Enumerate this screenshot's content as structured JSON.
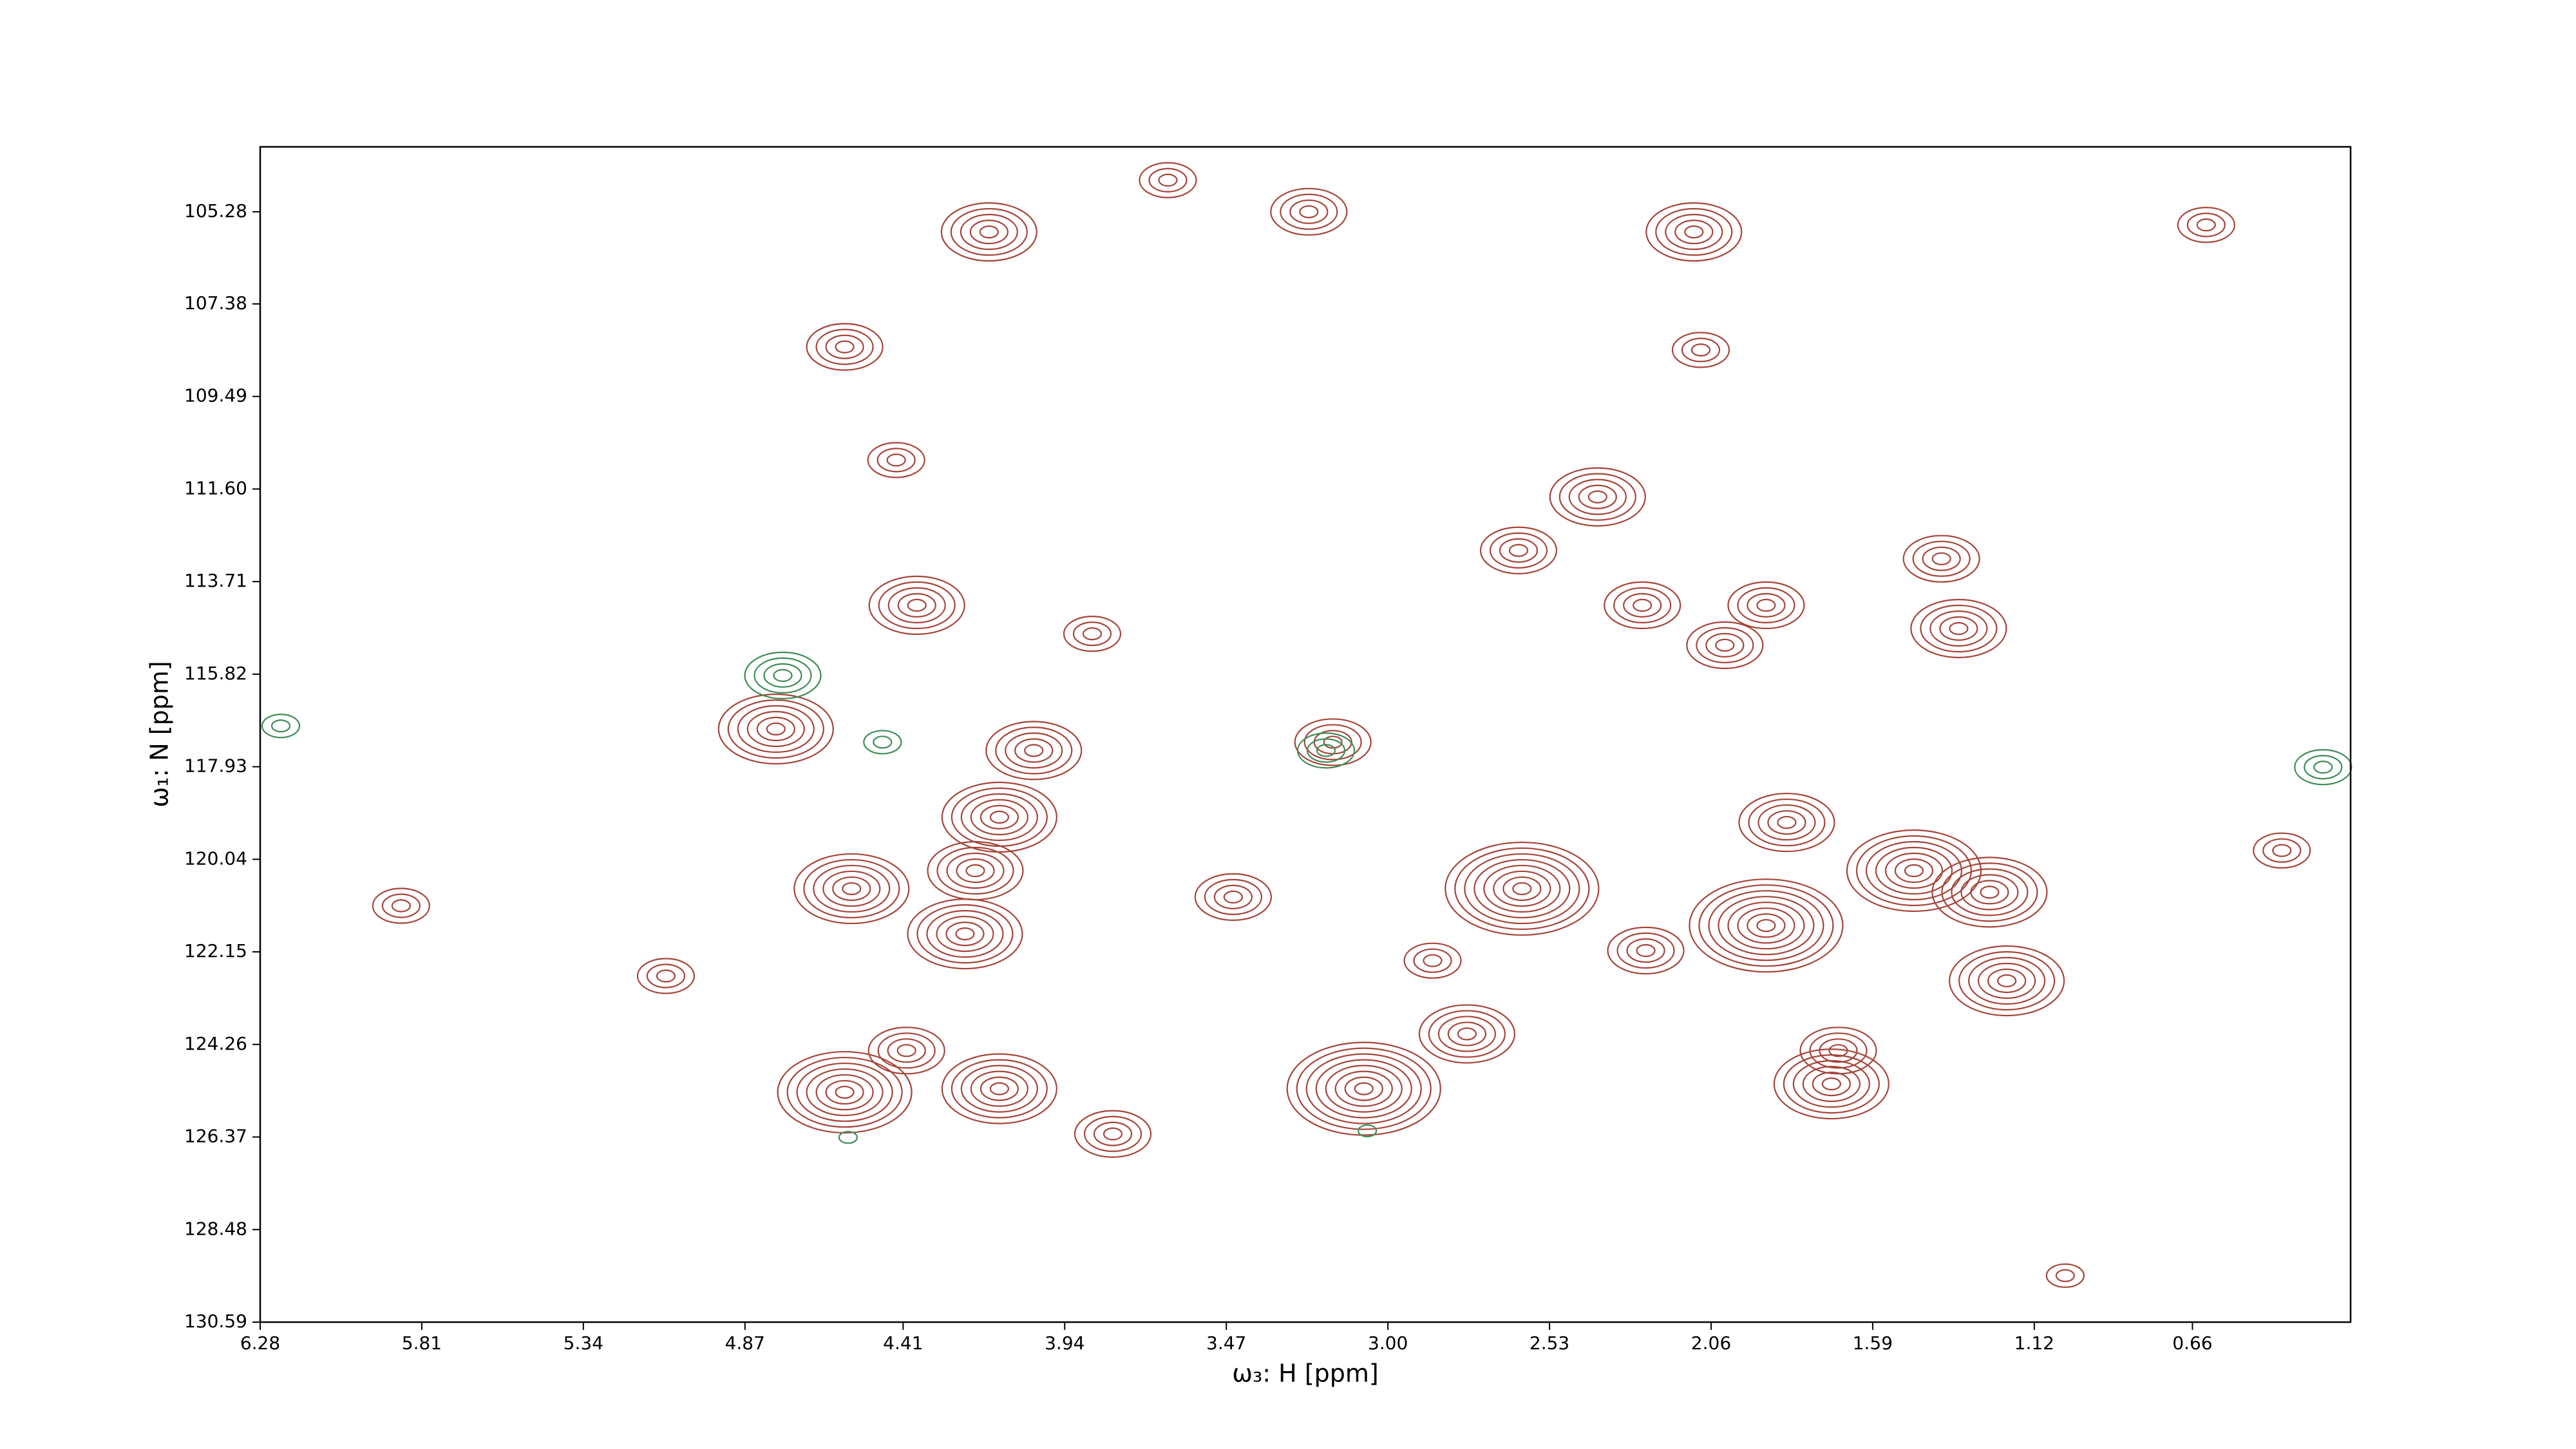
{
  "chart_data": {
    "type": "contour",
    "xlabel": "ω₃: H [ppm]",
    "ylabel": "ω₁: N [ppm]",
    "xlim": [
      6.28,
      0.2
    ],
    "ylim": [
      130.59,
      103.8
    ],
    "xticks": [
      6.28,
      5.81,
      5.34,
      4.87,
      4.41,
      3.94,
      3.47,
      {
        "value": 3.0,
        "label": "3.00"
      },
      2.53,
      2.06,
      1.59,
      1.12,
      0.66
    ],
    "yticks": [
      105.28,
      107.38,
      109.49,
      {
        "value": 111.6,
        "label": "111.60"
      },
      113.71,
      115.82,
      117.93,
      120.04,
      122.15,
      124.26,
      126.37,
      128.48,
      130.59
    ],
    "color": "#a5453a",
    "negative_color": "#3e8c56",
    "peaks": [
      {
        "x": 4.16,
        "y": 105.74,
        "levels": 5
      },
      {
        "x": 3.23,
        "y": 105.28,
        "levels": 4
      },
      {
        "x": 2.11,
        "y": 105.74,
        "levels": 5
      },
      {
        "x": 4.58,
        "y": 108.36,
        "levels": 4
      },
      {
        "x": 4.43,
        "y": 110.94,
        "levels": 3
      },
      {
        "x": 2.39,
        "y": 111.78,
        "levels": 5
      },
      {
        "x": 2.62,
        "y": 113.0,
        "levels": 4
      },
      {
        "x": 4.37,
        "y": 114.25,
        "levels": 5
      },
      {
        "x": 2.26,
        "y": 114.25,
        "levels": 4
      },
      {
        "x": 1.9,
        "y": 114.25,
        "levels": 4
      },
      {
        "x": 1.39,
        "y": 113.19,
        "levels": 4
      },
      {
        "x": 1.34,
        "y": 114.78,
        "levels": 5
      },
      {
        "x": 2.02,
        "y": 115.16,
        "levels": 4
      },
      {
        "x": 4.78,
        "y": 117.07,
        "levels": 6
      },
      {
        "x": 3.16,
        "y": 117.37,
        "levels": 4
      },
      {
        "x": 4.03,
        "y": 117.56,
        "levels": 5
      },
      {
        "x": 4.13,
        "y": 119.08,
        "levels": 6
      },
      {
        "x": 4.56,
        "y": 120.71,
        "levels": 6
      },
      {
        "x": 4.2,
        "y": 120.3,
        "levels": 5
      },
      {
        "x": 4.23,
        "y": 121.74,
        "levels": 6
      },
      {
        "x": 2.61,
        "y": 120.71,
        "levels": 8
      },
      {
        "x": 1.9,
        "y": 121.55,
        "levels": 8
      },
      {
        "x": 1.47,
        "y": 120.3,
        "levels": 7
      },
      {
        "x": 1.25,
        "y": 120.79,
        "levels": 6
      },
      {
        "x": 1.2,
        "y": 122.81,
        "levels": 6
      },
      {
        "x": 1.84,
        "y": 119.2,
        "levels": 5
      },
      {
        "x": 2.25,
        "y": 122.12,
        "levels": 4
      },
      {
        "x": 2.77,
        "y": 124.02,
        "levels": 5
      },
      {
        "x": 4.58,
        "y": 125.35,
        "levels": 7
      },
      {
        "x": 4.13,
        "y": 125.27,
        "levels": 6
      },
      {
        "x": 3.07,
        "y": 125.27,
        "levels": 8
      },
      {
        "x": 1.71,
        "y": 125.16,
        "levels": 6
      },
      {
        "x": 1.69,
        "y": 124.4,
        "levels": 4
      },
      {
        "x": 4.4,
        "y": 124.4,
        "levels": 4
      },
      {
        "x": 3.8,
        "y": 126.3,
        "levels": 4
      },
      {
        "x": 3.45,
        "y": 120.9,
        "levels": 4
      },
      {
        "x": 2.87,
        "y": 122.35,
        "levels": 3
      },
      {
        "x": 5.1,
        "y": 122.7,
        "levels": 3
      },
      {
        "x": 5.87,
        "y": 121.1,
        "levels": 3
      },
      {
        "x": 0.4,
        "y": 119.84,
        "levels": 3
      },
      {
        "x": 0.62,
        "y": 105.58,
        "levels": 3
      },
      {
        "x": 3.64,
        "y": 104.56,
        "levels": 3
      },
      {
        "x": 2.09,
        "y": 108.43,
        "levels": 3
      },
      {
        "x": 3.86,
        "y": 114.9,
        "levels": 3
      },
      {
        "x": 1.03,
        "y": 129.53,
        "levels": 2
      }
    ],
    "negative_peaks": [
      {
        "x": 4.76,
        "y": 115.85,
        "levels": 4
      },
      {
        "x": 3.18,
        "y": 117.56,
        "levels": 3
      },
      {
        "x": 4.47,
        "y": 117.37,
        "levels": 2
      },
      {
        "x": 6.22,
        "y": 117.0,
        "levels": 2
      },
      {
        "x": 0.28,
        "y": 117.94,
        "levels": 3
      },
      {
        "x": 4.57,
        "y": 126.38,
        "levels": 1
      },
      {
        "x": 3.06,
        "y": 126.23,
        "levels": 1
      }
    ]
  }
}
